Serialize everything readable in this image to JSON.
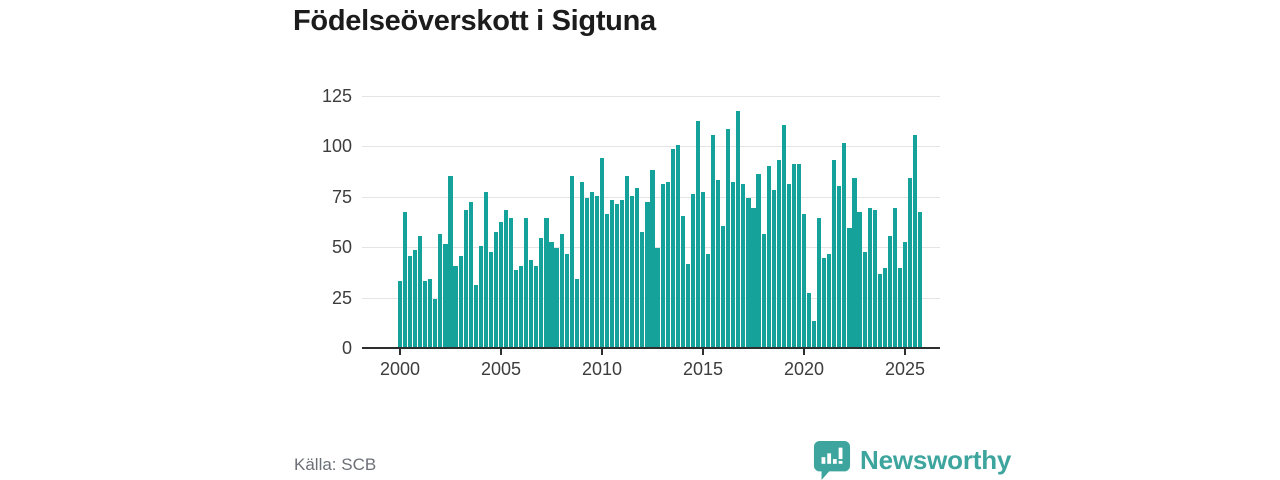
{
  "title": "Födelseöverskott i Sigtuna",
  "source": "Källa: SCB",
  "branding": {
    "name": "Newsworthy",
    "icon": "speech-bubble-bar-chart-icon"
  },
  "colors": {
    "bar": "#14a29b",
    "brand": "#3ea59e",
    "grid": "#e4e4e4",
    "axis_line": "#2e2e2e",
    "tick_text": "#3d3d3d",
    "title_text": "#1c1c1c",
    "muted_text": "#6c7077"
  },
  "chart_data": {
    "type": "bar",
    "title": "Födelseöverskott i Sigtuna",
    "xlabel": "",
    "ylabel": "",
    "ylim": [
      0,
      125
    ],
    "y_ticks": [
      0,
      25,
      50,
      75,
      100,
      125
    ],
    "x_ticks": [
      2000,
      2005,
      2010,
      2015,
      2020,
      2025
    ],
    "grid": "horizontal",
    "legend": "none",
    "categories": [
      "2000 Q1",
      "2000 Q2",
      "2000 Q3",
      "2000 Q4",
      "2001 Q1",
      "2001 Q2",
      "2001 Q3",
      "2001 Q4",
      "2002 Q1",
      "2002 Q2",
      "2002 Q3",
      "2002 Q4",
      "2003 Q1",
      "2003 Q2",
      "2003 Q3",
      "2003 Q4",
      "2004 Q1",
      "2004 Q2",
      "2004 Q3",
      "2004 Q4",
      "2005 Q1",
      "2005 Q2",
      "2005 Q3",
      "2005 Q4",
      "2006 Q1",
      "2006 Q2",
      "2006 Q3",
      "2006 Q4",
      "2007 Q1",
      "2007 Q2",
      "2007 Q3",
      "2007 Q4",
      "2008 Q1",
      "2008 Q2",
      "2008 Q3",
      "2008 Q4",
      "2009 Q1",
      "2009 Q2",
      "2009 Q3",
      "2009 Q4",
      "2010 Q1",
      "2010 Q2",
      "2010 Q3",
      "2010 Q4",
      "2011 Q1",
      "2011 Q2",
      "2011 Q3",
      "2011 Q4",
      "2012 Q1",
      "2012 Q2",
      "2012 Q3",
      "2012 Q4",
      "2013 Q1",
      "2013 Q2",
      "2013 Q3",
      "2013 Q4",
      "2014 Q1",
      "2014 Q2",
      "2014 Q3",
      "2014 Q4",
      "2015 Q1",
      "2015 Q2",
      "2015 Q3",
      "2015 Q4",
      "2016 Q1",
      "2016 Q2",
      "2016 Q3",
      "2016 Q4",
      "2017 Q1",
      "2017 Q2",
      "2017 Q3",
      "2017 Q4",
      "2018 Q1",
      "2018 Q2",
      "2018 Q3",
      "2018 Q4",
      "2019 Q1",
      "2019 Q2",
      "2019 Q3",
      "2019 Q4",
      "2020 Q1",
      "2020 Q2",
      "2020 Q3",
      "2020 Q4",
      "2021 Q1",
      "2021 Q2",
      "2021 Q3",
      "2021 Q4",
      "2022 Q1",
      "2022 Q2",
      "2022 Q3",
      "2022 Q4",
      "2023 Q1",
      "2023 Q2",
      "2023 Q3",
      "2023 Q4",
      "2024 Q1",
      "2024 Q2",
      "2024 Q3",
      "2024 Q4",
      "2025 Q1",
      "2025 Q2",
      "2025 Q3",
      "2025 Q4"
    ],
    "values": [
      33,
      67,
      45,
      48,
      55,
      33,
      34,
      24,
      56,
      51,
      85,
      40,
      45,
      68,
      72,
      31,
      50,
      77,
      47,
      57,
      62,
      68,
      64,
      38,
      40,
      64,
      43,
      40,
      54,
      64,
      52,
      49,
      56,
      46,
      85,
      34,
      82,
      74,
      77,
      75,
      94,
      66,
      73,
      71,
      73,
      85,
      75,
      79,
      57,
      72,
      88,
      49,
      81,
      82,
      98,
      100,
      65,
      41,
      76,
      112,
      77,
      46,
      105,
      83,
      60,
      108,
      82,
      117,
      81,
      74,
      69,
      86,
      56,
      90,
      78,
      93,
      110,
      81,
      91,
      91,
      66,
      27,
      13,
      64,
      44,
      46,
      93,
      80,
      101,
      59,
      84,
      67,
      47,
      69,
      68,
      36,
      39,
      55,
      69,
      39,
      52,
      84,
      105,
      67
    ]
  }
}
